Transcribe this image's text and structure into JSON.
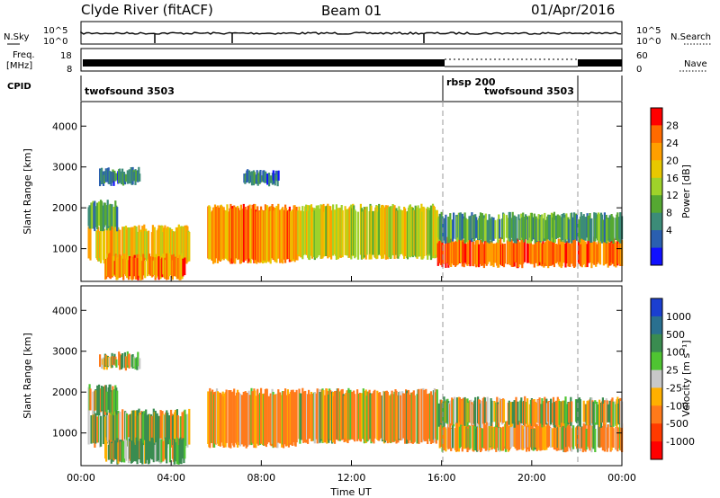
{
  "header": {
    "station": "Clyde River (fitACF)",
    "beam": "Beam 01",
    "date": "01/Apr/2016"
  },
  "top_panels": {
    "nsky_label": "N.Sky",
    "nsky_ticks": [
      "10^5",
      "10^0"
    ],
    "nsky_right_ticks": [
      "10^5",
      "10^0"
    ],
    "nsearch_label": "N.Search",
    "freq_label_line1": "Freq.",
    "freq_label_line2": "[MHz]",
    "freq_ticks": [
      "18",
      "8"
    ],
    "nave_ticks": [
      "60",
      "0"
    ],
    "nave_label": "Nave",
    "cpid_label": "CPID",
    "cpid_segments": [
      "twofsound 3503",
      "rbsp 200",
      "twofsound 3503"
    ]
  },
  "x_axis": {
    "label": "Time UT",
    "ticks": [
      "00:00",
      "04:00",
      "08:00",
      "12:00",
      "16:00",
      "20:00",
      "00:00"
    ]
  },
  "power_colorbar": {
    "label": "Power [dB]",
    "ticks": [
      "28",
      "24",
      "20",
      "16",
      "12",
      "8",
      "4"
    ],
    "colors": [
      "#ff0000",
      "#ff6a00",
      "#ff9f00",
      "#e8c800",
      "#9fd22a",
      "#55a832",
      "#3c8c78",
      "#2a5fb0",
      "#1010ff"
    ]
  },
  "velocity_colorbar": {
    "label": "Velocity [m s⁻¹]",
    "ticks": [
      "1000",
      "500",
      "100",
      "25",
      "-25",
      "-100",
      "-500",
      "-1000"
    ],
    "colors": [
      "#1b3fd0",
      "#2a7090",
      "#3a8c50",
      "#4fc432",
      "#c8c8c8",
      "#ffb000",
      "#ff7a1a",
      "#ff3a00",
      "#ff0000"
    ]
  },
  "chart_data": {
    "type": "heatmap",
    "panels": [
      {
        "name": "power",
        "ylabel": "Slant Range [km]",
        "xlim": [
          0,
          24
        ],
        "ylim": [
          200,
          4600
        ],
        "yticks": [
          1000,
          2000,
          3000,
          4000
        ],
        "units": "dB",
        "bands": [
          {
            "t0": 0.3,
            "t1": 4.8,
            "r0": 700,
            "r1": 1500,
            "level": 18
          },
          {
            "t0": 0.3,
            "t1": 1.6,
            "r0": 1500,
            "r1": 2100,
            "level": 9
          },
          {
            "t0": 1.0,
            "t1": 4.6,
            "r0": 300,
            "r1": 800,
            "level": 22
          },
          {
            "t0": 0.8,
            "t1": 2.6,
            "r0": 2600,
            "r1": 2900,
            "level": 6
          },
          {
            "t0": 5.6,
            "t1": 9.6,
            "r0": 700,
            "r1": 2000,
            "level": 22
          },
          {
            "t0": 7.2,
            "t1": 8.8,
            "r0": 2600,
            "r1": 2850,
            "level": 6
          },
          {
            "t0": 9.6,
            "t1": 15.8,
            "r0": 800,
            "r1": 2000,
            "level": 16
          },
          {
            "t0": 15.8,
            "t1": 24,
            "r0": 600,
            "r1": 1200,
            "level": 24
          },
          {
            "t0": 15.8,
            "t1": 24,
            "r0": 1200,
            "r1": 1800,
            "level": 9
          }
        ]
      },
      {
        "name": "velocity",
        "ylabel": "Slant Range [km]",
        "xlim": [
          0,
          24
        ],
        "ylim": [
          200,
          4600
        ],
        "yticks": [
          1000,
          2000,
          3000,
          4000
        ],
        "units": "m s-1",
        "bands": [
          {
            "t0": 0.3,
            "t1": 4.8,
            "r0": 700,
            "r1": 1500,
            "level": 60
          },
          {
            "t0": 0.3,
            "t1": 1.6,
            "r0": 1500,
            "r1": 2100,
            "level": 0
          },
          {
            "t0": 1.0,
            "t1": 4.6,
            "r0": 300,
            "r1": 800,
            "level": 150
          },
          {
            "t0": 0.8,
            "t1": 2.6,
            "r0": 2600,
            "r1": 2900,
            "level": 0
          },
          {
            "t0": 5.6,
            "t1": 9.6,
            "r0": 700,
            "r1": 2000,
            "level": -200
          },
          {
            "t0": 9.6,
            "t1": 15.8,
            "r0": 800,
            "r1": 2000,
            "level": -150
          },
          {
            "t0": 15.8,
            "t1": 24,
            "r0": 600,
            "r1": 1200,
            "level": -150
          },
          {
            "t0": 15.8,
            "t1": 24,
            "r0": 1200,
            "r1": 1800,
            "level": 0
          }
        ]
      }
    ],
    "cpid_transitions_ut": [
      16.0,
      22.0
    ]
  }
}
